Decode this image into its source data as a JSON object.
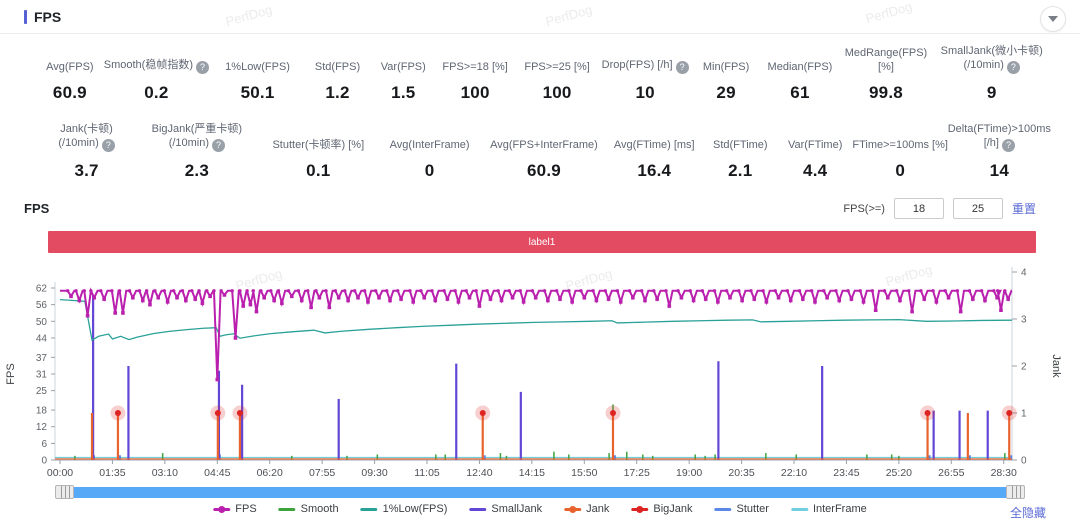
{
  "watermark": "PerfDog",
  "header": {
    "title": "FPS"
  },
  "stats_row1": [
    {
      "label": "Avg(FPS)",
      "value": "60.9",
      "help": false,
      "w": 6.3
    },
    {
      "label": "Smooth(稳帧指数)",
      "value": "0.2",
      "help": true,
      "w": 10.8
    },
    {
      "label": "1%Low(FPS)",
      "value": "50.1",
      "help": false,
      "w": 9.2
    },
    {
      "label": "Std(FPS)",
      "value": "1.2",
      "help": false,
      "w": 6.6
    },
    {
      "label": "Var(FPS)",
      "value": "1.5",
      "help": false,
      "w": 6.4
    },
    {
      "label": "FPS>=18 [%]",
      "value": "100",
      "help": false,
      "w": 7.8
    },
    {
      "label": "FPS>=25 [%]",
      "value": "100",
      "help": false,
      "w": 8.4
    },
    {
      "label": "Drop(FPS) [/h]",
      "value": "10",
      "help": true,
      "w": 9.0
    },
    {
      "label": "Min(FPS)",
      "value": "29",
      "help": false,
      "w": 7.0
    },
    {
      "label": "Median(FPS)",
      "value": "61",
      "help": false,
      "w": 7.6
    },
    {
      "label": "MedRange(FPS)[%]",
      "value": "99.8",
      "help": false,
      "w": 9.4
    },
    {
      "label": "SmallJank(微小卡顿)\n(/10min)",
      "value": "9",
      "help": true,
      "w": 11.5
    }
  ],
  "stats_row2": [
    {
      "label": "Jank(卡顿)\n(/10min)",
      "value": "3.7",
      "help": true,
      "w": 9.6
    },
    {
      "label": "BigJank(严重卡顿)\n(/10min)",
      "value": "2.3",
      "help": true,
      "w": 12.2
    },
    {
      "label": "Stutter(卡顿率) [%]",
      "value": "0.1",
      "help": false,
      "w": 11.8
    },
    {
      "label": "Avg(InterFrame)",
      "value": "0",
      "help": false,
      "w": 10.2
    },
    {
      "label": "Avg(FPS+InterFrame)",
      "value": "60.9",
      "help": false,
      "w": 12.4
    },
    {
      "label": "Avg(FTime) [ms]",
      "value": "16.4",
      "help": false,
      "w": 9.4
    },
    {
      "label": "Std(FTime)",
      "value": "2.1",
      "help": false,
      "w": 7.6
    },
    {
      "label": "Var(FTime)",
      "value": "4.4",
      "help": false,
      "w": 7.2
    },
    {
      "label": "FTime>=100ms [%]",
      "value": "0",
      "help": false,
      "w": 9.6
    },
    {
      "label": "Delta(FTime)>100ms [/h]",
      "value": "14",
      "help": true,
      "w": 10.0
    }
  ],
  "chart_section": {
    "title": "FPS",
    "filter_label": "FPS(>=)",
    "threshold1": "18",
    "threshold2": "25",
    "reset_label": "重置",
    "banner_label": "label1",
    "hide_all_label": "全隐藏"
  },
  "chart_data": {
    "type": "line",
    "title": "FPS",
    "duration_seconds": 1725,
    "x_axis": {
      "tick_interval_seconds": 95,
      "labels": [
        "00:00",
        "01:35",
        "03:10",
        "04:45",
        "06:20",
        "07:55",
        "09:30",
        "11:05",
        "12:40",
        "14:15",
        "15:50",
        "17:25",
        "19:00",
        "20:35",
        "22:10",
        "23:45",
        "25:20",
        "26:55",
        "28:30"
      ]
    },
    "y_left": {
      "label": "FPS",
      "ticks": [
        0,
        6,
        12,
        18,
        25,
        31,
        37,
        44,
        50,
        56,
        62
      ],
      "max": 62
    },
    "y_right": {
      "label": "Jank",
      "ticks": [
        0,
        1,
        2,
        3,
        4
      ],
      "max": 4
    },
    "legend": [
      {
        "name": "FPS",
        "color": "#ba20ae"
      },
      {
        "name": "Smooth",
        "color": "#3da43d"
      },
      {
        "name": "1%Low(FPS)",
        "color": "#2aa198"
      },
      {
        "name": "SmallJank",
        "color": "#6247d6"
      },
      {
        "name": "Jank",
        "color": "#e8632e"
      },
      {
        "name": "BigJank",
        "color": "#de2323"
      },
      {
        "name": "Stutter",
        "color": "#5b87e6"
      },
      {
        "name": "InterFrame",
        "color": "#6fcfe0"
      }
    ],
    "series": {
      "fps_base": 61,
      "fps_dips": [
        [
          20,
          59
        ],
        [
          35,
          57.5
        ],
        [
          50,
          52
        ],
        [
          62,
          58.5
        ],
        [
          80,
          58
        ],
        [
          100,
          53
        ],
        [
          114,
          53
        ],
        [
          132,
          58.5
        ],
        [
          150,
          57.5
        ],
        [
          163,
          56
        ],
        [
          178,
          58.5
        ],
        [
          195,
          57
        ],
        [
          212,
          58.5
        ],
        [
          228,
          57.5
        ],
        [
          245,
          58
        ],
        [
          258,
          56.5
        ],
        [
          272,
          59
        ],
        [
          285,
          29
        ],
        [
          298,
          59.5
        ],
        [
          318,
          44
        ],
        [
          332,
          55.5
        ],
        [
          345,
          56
        ],
        [
          356,
          53.5
        ],
        [
          370,
          58.5
        ],
        [
          388,
          57.5
        ],
        [
          402,
          56.5
        ],
        [
          420,
          59
        ],
        [
          438,
          57.5
        ],
        [
          455,
          55
        ],
        [
          470,
          58.5
        ],
        [
          488,
          55
        ],
        [
          505,
          58.5
        ],
        [
          522,
          57.5
        ],
        [
          540,
          58.5
        ],
        [
          558,
          57
        ],
        [
          578,
          58.5
        ],
        [
          598,
          57.5
        ],
        [
          618,
          58
        ],
        [
          640,
          57
        ],
        [
          660,
          58.5
        ],
        [
          680,
          57.5
        ],
        [
          702,
          58
        ],
        [
          722,
          57
        ],
        [
          742,
          58.5
        ],
        [
          760,
          55.5
        ],
        [
          780,
          58
        ],
        [
          800,
          57.5
        ],
        [
          820,
          58.5
        ],
        [
          840,
          57
        ],
        [
          862,
          58.5
        ],
        [
          884,
          57.5
        ],
        [
          906,
          58
        ],
        [
          928,
          57
        ],
        [
          950,
          58.5
        ],
        [
          972,
          57.5
        ],
        [
          994,
          58
        ],
        [
          1016,
          57
        ],
        [
          1038,
          58.5
        ],
        [
          1060,
          57.5
        ],
        [
          1082,
          58
        ],
        [
          1104,
          55.5
        ],
        [
          1126,
          58.5
        ],
        [
          1148,
          57.5
        ],
        [
          1170,
          58
        ],
        [
          1192,
          57
        ],
        [
          1214,
          58.5
        ],
        [
          1236,
          57.5
        ],
        [
          1258,
          58
        ],
        [
          1280,
          57
        ],
        [
          1302,
          58.5
        ],
        [
          1324,
          57.5
        ],
        [
          1346,
          58
        ],
        [
          1368,
          57
        ],
        [
          1390,
          58.5
        ],
        [
          1412,
          57.5
        ],
        [
          1434,
          58
        ],
        [
          1456,
          57
        ],
        [
          1478,
          54
        ],
        [
          1500,
          58.5
        ],
        [
          1522,
          57.5
        ],
        [
          1544,
          53.5
        ],
        [
          1566,
          58
        ],
        [
          1588,
          57
        ],
        [
          1610,
          58.5
        ],
        [
          1632,
          53.5
        ],
        [
          1654,
          58
        ],
        [
          1676,
          57.5
        ],
        [
          1698,
          58.5
        ],
        [
          1705,
          54
        ],
        [
          1718,
          58
        ]
      ],
      "low1_points": [
        [
          0,
          57.8
        ],
        [
          25,
          57.5
        ],
        [
          45,
          57.2
        ],
        [
          58,
          43.2
        ],
        [
          70,
          44.6
        ],
        [
          88,
          45.4
        ],
        [
          95,
          43.6
        ],
        [
          110,
          44.6
        ],
        [
          125,
          43.4
        ],
        [
          140,
          44.3
        ],
        [
          170,
          45.6
        ],
        [
          200,
          46.4
        ],
        [
          230,
          47.0
        ],
        [
          260,
          47.5
        ],
        [
          283,
          47.7
        ],
        [
          290,
          44.6
        ],
        [
          300,
          45.1
        ],
        [
          315,
          45.5
        ],
        [
          326,
          43.9
        ],
        [
          350,
          44.7
        ],
        [
          380,
          45.5
        ],
        [
          420,
          46.2
        ],
        [
          460,
          46.8
        ],
        [
          480,
          45.8
        ],
        [
          510,
          46.4
        ],
        [
          560,
          47.1
        ],
        [
          610,
          47.7
        ],
        [
          660,
          48.2
        ],
        [
          710,
          48.6
        ],
        [
          760,
          49.0
        ],
        [
          810,
          49.3
        ],
        [
          860,
          49.6
        ],
        [
          910,
          49.8
        ],
        [
          960,
          50.0
        ],
        [
          1000,
          50.2
        ],
        [
          1010,
          49.4
        ],
        [
          1060,
          49.7
        ],
        [
          1110,
          50.0
        ],
        [
          1160,
          50.2
        ],
        [
          1210,
          50.4
        ],
        [
          1255,
          50.5
        ],
        [
          1270,
          49.8
        ],
        [
          1320,
          50.0
        ],
        [
          1370,
          50.2
        ],
        [
          1420,
          50.4
        ],
        [
          1470,
          50.5
        ],
        [
          1520,
          50.6
        ],
        [
          1570,
          50.0
        ],
        [
          1620,
          50.1
        ],
        [
          1670,
          50.3
        ],
        [
          1725,
          50.4
        ]
      ],
      "smooth_spikes_fps": [
        [
          27,
          1.5
        ],
        [
          186,
          2.5
        ],
        [
          286,
          7
        ],
        [
          420,
          1.5
        ],
        [
          520,
          1.5
        ],
        [
          575,
          2
        ],
        [
          681,
          2
        ],
        [
          698,
          2
        ],
        [
          798,
          2.5
        ],
        [
          809,
          1.5
        ],
        [
          895,
          3
        ],
        [
          922,
          2
        ],
        [
          995,
          2.5
        ],
        [
          1002,
          20
        ],
        [
          1027,
          3
        ],
        [
          1056,
          2
        ],
        [
          1074,
          1.5
        ],
        [
          1151,
          2
        ],
        [
          1169,
          1.5
        ],
        [
          1187,
          2
        ],
        [
          1279,
          2.5
        ],
        [
          1334,
          2
        ],
        [
          1462,
          2
        ],
        [
          1507,
          2
        ],
        [
          1520,
          1.5
        ],
        [
          1712,
          2.5
        ]
      ],
      "smalljank_spikes_jank": [
        [
          60,
          3.5
        ],
        [
          124,
          2.0
        ],
        [
          288,
          1.9
        ],
        [
          330,
          1.6
        ],
        [
          505,
          1.3
        ],
        [
          718,
          2.05
        ],
        [
          835,
          1.45
        ],
        [
          1193,
          2.1
        ],
        [
          1381,
          2.0
        ],
        [
          1583,
          1.05
        ],
        [
          1630,
          1.05
        ],
        [
          1681,
          1.05
        ]
      ],
      "jank_spikes_jank": [
        [
          58,
          1
        ],
        [
          105,
          1
        ],
        [
          286,
          1
        ],
        [
          326,
          1
        ],
        [
          766,
          1
        ],
        [
          1002,
          1
        ],
        [
          1572,
          1
        ],
        [
          1645,
          1
        ],
        [
          1720,
          1
        ]
      ],
      "bigjank_markers_jank": [
        [
          105,
          1
        ],
        [
          286,
          1
        ],
        [
          326,
          1
        ],
        [
          766,
          1
        ],
        [
          1002,
          1
        ],
        [
          1572,
          1
        ],
        [
          1720,
          1
        ]
      ],
      "stutter_spikes_jank": [
        [
          58,
          0.1
        ],
        [
          105,
          0.1
        ],
        [
          286,
          0.12
        ],
        [
          326,
          0.1
        ],
        [
          766,
          0.1
        ],
        [
          1002,
          0.1
        ],
        [
          1572,
          0.1
        ],
        [
          1645,
          0.1
        ],
        [
          1720,
          0.1
        ]
      ],
      "interframe_value": 0
    }
  }
}
